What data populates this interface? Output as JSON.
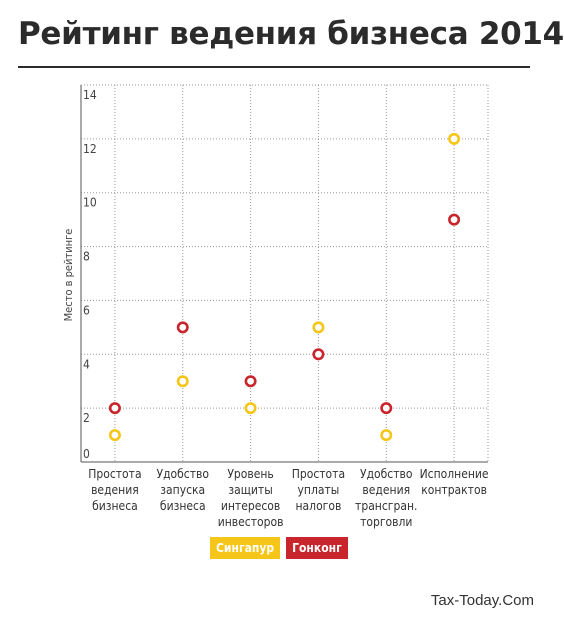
{
  "title": "Рейтинг ведения бизнеса 2014",
  "source": "Tax-Today.Com",
  "chart_data": {
    "type": "scatter",
    "title": "Рейтинг ведения бизнеса 2014",
    "xlabel": "",
    "ylabel": "Место в рейтинге",
    "ylim": [
      0,
      14
    ],
    "yticks": [
      0,
      2,
      4,
      6,
      8,
      10,
      12,
      14
    ],
    "grid": true,
    "legend_position": "bottom",
    "categories": [
      [
        "Простота",
        "ведения",
        "бизнеса"
      ],
      [
        "Удобство",
        "запуска",
        "бизнеса"
      ],
      [
        "Уровень",
        "защиты",
        "интересов",
        "инвесторов"
      ],
      [
        "Простота",
        "уплаты",
        "налогов"
      ],
      [
        "Удобство",
        "ведения",
        "трансгран.",
        "торговли"
      ],
      [
        "Исполнение",
        "контрактов"
      ]
    ],
    "series": [
      {
        "name": "Сингапур",
        "color": "#f5c518",
        "values": [
          1,
          3,
          2,
          5,
          1,
          12
        ]
      },
      {
        "name": "Гонконг",
        "color": "#c8262c",
        "values": [
          2,
          5,
          3,
          4,
          2,
          9
        ]
      }
    ]
  }
}
